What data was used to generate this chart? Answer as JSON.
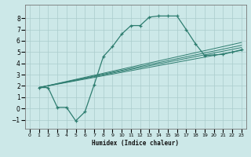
{
  "title": "",
  "xlabel": "Humidex (Indice chaleur)",
  "bg_color": "#cce8e8",
  "line_color": "#2e7d70",
  "grid_color": "#aacccc",
  "xlim": [
    -0.5,
    23.5
  ],
  "ylim": [
    -1.8,
    9.2
  ],
  "xticks": [
    0,
    1,
    2,
    3,
    4,
    5,
    6,
    7,
    8,
    9,
    10,
    11,
    12,
    13,
    14,
    15,
    16,
    17,
    18,
    19,
    20,
    21,
    22,
    23
  ],
  "yticks": [
    -1,
    0,
    1,
    2,
    3,
    4,
    5,
    6,
    7,
    8
  ],
  "curve1_x": [
    1,
    2,
    3,
    4,
    5,
    6,
    7,
    8,
    9,
    10,
    11,
    12,
    13,
    14,
    15,
    16,
    17,
    18,
    19,
    20,
    21,
    22,
    23
  ],
  "curve1_y": [
    1.85,
    1.85,
    0.1,
    0.1,
    -1.1,
    -0.3,
    2.1,
    4.6,
    5.5,
    6.6,
    7.35,
    7.35,
    8.1,
    8.2,
    8.2,
    8.2,
    7.0,
    5.75,
    4.7,
    4.75,
    4.8,
    5.0,
    5.2
  ],
  "line1_x": [
    1,
    23
  ],
  "line1_y": [
    1.85,
    5.15
  ],
  "line2_x": [
    1,
    23
  ],
  "line2_y": [
    1.85,
    5.4
  ],
  "line3_x": [
    1,
    23
  ],
  "line3_y": [
    1.85,
    5.6
  ],
  "line4_x": [
    1,
    23
  ],
  "line4_y": [
    1.85,
    5.85
  ]
}
